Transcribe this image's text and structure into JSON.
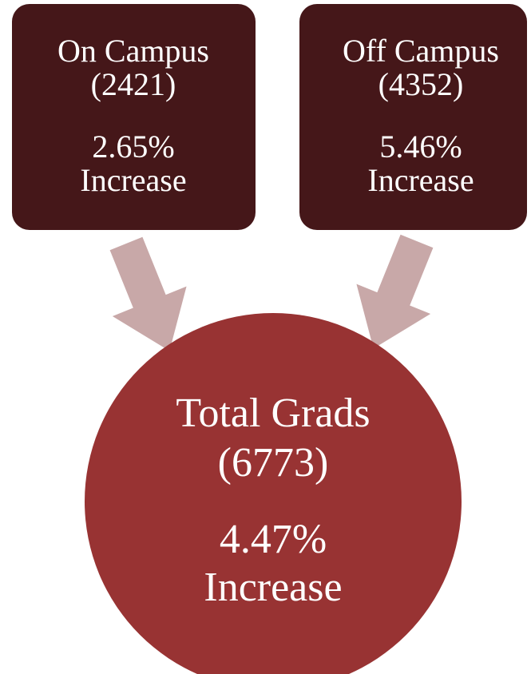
{
  "nodes": [
    {
      "title": "On Campus",
      "count": "(2421)",
      "change": "2.65%",
      "change_label": "Increase"
    },
    {
      "title": "Off Campus",
      "count": "(4352)",
      "change": "5.46%",
      "change_label": "Increase"
    },
    {
      "title": "Total Grads",
      "count": "(6773)",
      "change": "4.47%",
      "change_label": "Increase"
    }
  ]
}
